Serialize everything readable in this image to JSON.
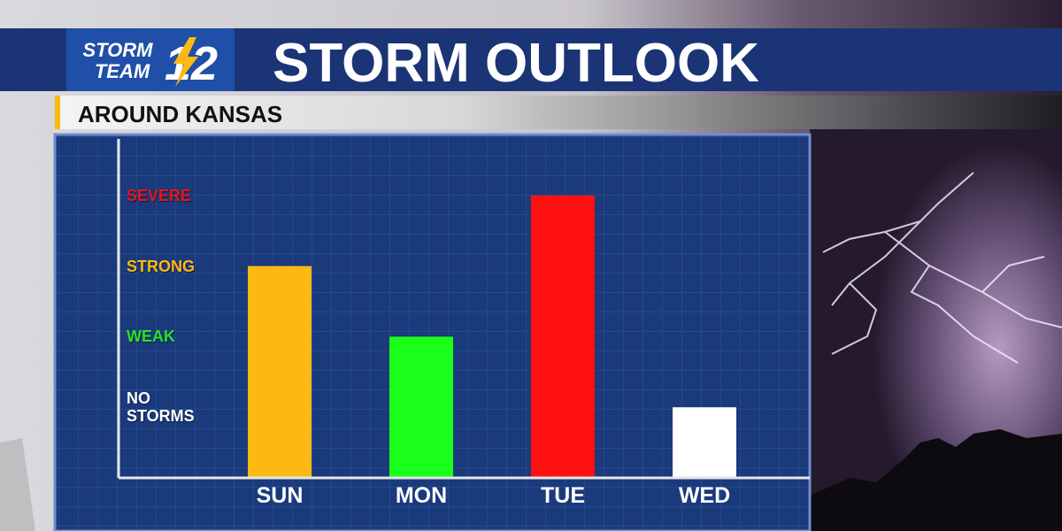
{
  "chart_data": {
    "type": "bar",
    "logo_text": [
      "STORM",
      "TEAM",
      "12"
    ],
    "title": "STORM OUTLOOK",
    "subtitle": "AROUND KANSAS",
    "categories": [
      "SUN",
      "MON",
      "TUE",
      "WED"
    ],
    "values": [
      3,
      2,
      4,
      1
    ],
    "colors": [
      "#fdb913",
      "#1aff1a",
      "#ff1010",
      "#ffffff"
    ],
    "ylim": [
      0,
      4.8
    ],
    "yticks": [
      {
        "value": 1,
        "label": "NO STORMS",
        "color": "#ffffff"
      },
      {
        "value": 2,
        "label": "WEAK",
        "color": "#2be22b"
      },
      {
        "value": 3,
        "label": "STRONG",
        "color": "#fdb913"
      },
      {
        "value": 4,
        "label": "SEVERE",
        "color": "#e8141b"
      }
    ]
  }
}
